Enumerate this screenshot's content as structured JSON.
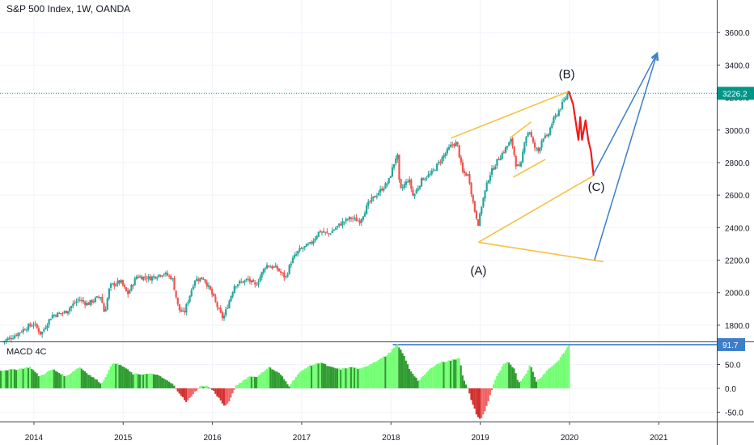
{
  "header": {
    "title": "S&P 500 Index, 1W, OANDA"
  },
  "chart_data": [
    {
      "type": "candlestick",
      "series_name": "S&P 500 Index",
      "interval": "1W",
      "source": "OANDA",
      "title": "S&P 500 Index, 1W, OANDA",
      "x_tick_labels": [
        "2014",
        "2015",
        "2016",
        "2017",
        "2018",
        "2019",
        "2020",
        "2021"
      ],
      "y_tick_labels": [
        "1800.0",
        "2000.0",
        "2200.0",
        "2400.0",
        "2600.0",
        "2800.0",
        "3000.0",
        "3200.0",
        "3400.0",
        "3600.0"
      ],
      "y_ticks": [
        1800,
        2000,
        2200,
        2400,
        2600,
        2800,
        3000,
        3200,
        3400,
        3600
      ],
      "ylim": [
        1700,
        3800
      ],
      "xlim": [
        2013.62,
        2021.65
      ],
      "last_price": 3226.2,
      "last_price_label": "3226.2",
      "up_color": "#26a69a",
      "down_color": "#ef5350",
      "path_anchors": [
        [
          2013.65,
          1700
        ],
        [
          2013.75,
          1725
        ],
        [
          2013.9,
          1780
        ],
        [
          2014.0,
          1810
        ],
        [
          2014.08,
          1745
        ],
        [
          2014.2,
          1860
        ],
        [
          2014.35,
          1880
        ],
        [
          2014.5,
          1960
        ],
        [
          2014.6,
          1930
        ],
        [
          2014.75,
          1980
        ],
        [
          2014.79,
          1870
        ],
        [
          2014.85,
          2040
        ],
        [
          2014.97,
          2070
        ],
        [
          2015.05,
          1990
        ],
        [
          2015.15,
          2100
        ],
        [
          2015.3,
          2090
        ],
        [
          2015.45,
          2120
        ],
        [
          2015.55,
          2090
        ],
        [
          2015.62,
          1900
        ],
        [
          2015.68,
          1870
        ],
        [
          2015.8,
          2080
        ],
        [
          2015.9,
          2090
        ],
        [
          2015.98,
          2010
        ],
        [
          2016.08,
          1880
        ],
        [
          2016.12,
          1840
        ],
        [
          2016.25,
          2050
        ],
        [
          2016.4,
          2080
        ],
        [
          2016.48,
          2040
        ],
        [
          2016.6,
          2170
        ],
        [
          2016.72,
          2150
        ],
        [
          2016.82,
          2090
        ],
        [
          2016.88,
          2190
        ],
        [
          2016.97,
          2260
        ],
        [
          2017.1,
          2300
        ],
        [
          2017.2,
          2380
        ],
        [
          2017.3,
          2360
        ],
        [
          2017.45,
          2430
        ],
        [
          2017.55,
          2460
        ],
        [
          2017.65,
          2440
        ],
        [
          2017.75,
          2550
        ],
        [
          2017.9,
          2640
        ],
        [
          2017.97,
          2680
        ],
        [
          2018.07,
          2860
        ],
        [
          2018.1,
          2620
        ],
        [
          2018.12,
          2640
        ],
        [
          2018.2,
          2700
        ],
        [
          2018.25,
          2590
        ],
        [
          2018.35,
          2700
        ],
        [
          2018.45,
          2730
        ],
        [
          2018.55,
          2810
        ],
        [
          2018.68,
          2910
        ],
        [
          2018.74,
          2920
        ],
        [
          2018.8,
          2740
        ],
        [
          2018.87,
          2720
        ],
        [
          2018.93,
          2520
        ],
        [
          2018.98,
          2420
        ],
        [
          2019.02,
          2550
        ],
        [
          2019.1,
          2720
        ],
        [
          2019.2,
          2820
        ],
        [
          2019.3,
          2900
        ],
        [
          2019.35,
          2940
        ],
        [
          2019.4,
          2790
        ],
        [
          2019.45,
          2760
        ],
        [
          2019.5,
          2950
        ],
        [
          2019.55,
          3000
        ],
        [
          2019.6,
          2900
        ],
        [
          2019.65,
          2870
        ],
        [
          2019.7,
          2960
        ],
        [
          2019.75,
          2950
        ],
        [
          2019.8,
          3040
        ],
        [
          2019.88,
          3120
        ],
        [
          2019.95,
          3190
        ],
        [
          2019.99,
          3240
        ]
      ],
      "forecast_path": [
        [
          2019.99,
          3240
        ],
        [
          2020.04,
          3160
        ],
        [
          2020.07,
          3050
        ],
        [
          2020.1,
          2940
        ],
        [
          2020.12,
          3080
        ],
        [
          2020.14,
          2940
        ],
        [
          2020.18,
          3060
        ],
        [
          2020.21,
          2940
        ],
        [
          2020.24,
          2870
        ],
        [
          2020.27,
          2720
        ]
      ],
      "forecast_color": "#ef1c1c",
      "price_line_color": "#009688",
      "annotations": [
        {
          "text": "(A)",
          "x": 2018.98,
          "y": 2110
        },
        {
          "text": "(B)",
          "x": 2019.97,
          "y": 3320
        },
        {
          "text": "(C)",
          "x": 2020.3,
          "y": 2625
        }
      ],
      "channel_lines": [
        {
          "color": "#f5c242",
          "from": [
            2018.67,
            2950
          ],
          "to": [
            2019.98,
            3235
          ]
        },
        {
          "color": "#f5c242",
          "from": [
            2018.98,
            2310
          ],
          "to": [
            2020.27,
            2720
          ]
        },
        {
          "color": "#f5c242",
          "from": [
            2018.98,
            2310
          ],
          "to": [
            2020.38,
            2190
          ]
        },
        {
          "color": "#f5c242",
          "from": [
            2019.33,
            2950
          ],
          "to": [
            2019.57,
            3050
          ]
        },
        {
          "color": "#f5c242",
          "from": [
            2019.37,
            2710
          ],
          "to": [
            2019.73,
            2820
          ]
        }
      ],
      "projection_lines": [
        {
          "color": "#3d7ec9",
          "from": [
            2020.27,
            2730
          ],
          "to": [
            2020.98,
            3470
          ],
          "arrow": true
        },
        {
          "color": "#3d7ec9",
          "from": [
            2020.28,
            2200
          ],
          "to": [
            2020.98,
            3470
          ],
          "arrow": true
        }
      ]
    },
    {
      "type": "histogram",
      "title": "MACD 4C",
      "y_tick_labels": [
        "50.0",
        "0.0",
        "-50.0"
      ],
      "y_ticks": [
        50,
        0,
        -50
      ],
      "ylim": [
        -68,
        95
      ],
      "last_value": 91.7,
      "last_value_label": "91.7",
      "colors": {
        "positive_rising": "#73ff73",
        "positive_falling": "#2e9b2e",
        "negative_falling": "#d32f2f",
        "negative_rising": "#f06262"
      },
      "level_line": {
        "color": "#3d7ec9",
        "from_x": 2018.02,
        "value": 91.7
      },
      "anchors": [
        [
          2013.62,
          38
        ],
        [
          2013.8,
          40
        ],
        [
          2013.95,
          45
        ],
        [
          2014.05,
          25
        ],
        [
          2014.2,
          40
        ],
        [
          2014.35,
          25
        ],
        [
          2014.5,
          45
        ],
        [
          2014.6,
          30
        ],
        [
          2014.75,
          10
        ],
        [
          2014.88,
          55
        ],
        [
          2015.0,
          45
        ],
        [
          2015.1,
          30
        ],
        [
          2015.2,
          30
        ],
        [
          2015.35,
          30
        ],
        [
          2015.45,
          20
        ],
        [
          2015.55,
          8
        ],
        [
          2015.62,
          -10
        ],
        [
          2015.7,
          -30
        ],
        [
          2015.78,
          -10
        ],
        [
          2015.86,
          5
        ],
        [
          2015.93,
          5
        ],
        [
          2016.0,
          -5
        ],
        [
          2016.08,
          -25
        ],
        [
          2016.13,
          -40
        ],
        [
          2016.2,
          -20
        ],
        [
          2016.25,
          5
        ],
        [
          2016.4,
          25
        ],
        [
          2016.5,
          25
        ],
        [
          2016.62,
          45
        ],
        [
          2016.75,
          30
        ],
        [
          2016.85,
          5
        ],
        [
          2016.95,
          30
        ],
        [
          2017.05,
          45
        ],
        [
          2017.2,
          55
        ],
        [
          2017.3,
          45
        ],
        [
          2017.42,
          40
        ],
        [
          2017.55,
          45
        ],
        [
          2017.65,
          40
        ],
        [
          2017.8,
          55
        ],
        [
          2017.95,
          70
        ],
        [
          2018.06,
          92
        ],
        [
          2018.12,
          75
        ],
        [
          2018.2,
          40
        ],
        [
          2018.3,
          15
        ],
        [
          2018.35,
          25
        ],
        [
          2018.45,
          45
        ],
        [
          2018.55,
          55
        ],
        [
          2018.7,
          60
        ],
        [
          2018.76,
          65
        ],
        [
          2018.8,
          20
        ],
        [
          2018.85,
          0
        ],
        [
          2018.9,
          -30
        ],
        [
          2018.96,
          -60
        ],
        [
          2019.0,
          -65
        ],
        [
          2019.05,
          -45
        ],
        [
          2019.1,
          -15
        ],
        [
          2019.15,
          15
        ],
        [
          2019.25,
          50
        ],
        [
          2019.3,
          55
        ],
        [
          2019.38,
          40
        ],
        [
          2019.42,
          10
        ],
        [
          2019.5,
          30
        ],
        [
          2019.55,
          50
        ],
        [
          2019.62,
          15
        ],
        [
          2019.68,
          25
        ],
        [
          2019.75,
          40
        ],
        [
          2019.85,
          55
        ],
        [
          2019.93,
          75
        ],
        [
          2019.99,
          92
        ]
      ]
    }
  ]
}
